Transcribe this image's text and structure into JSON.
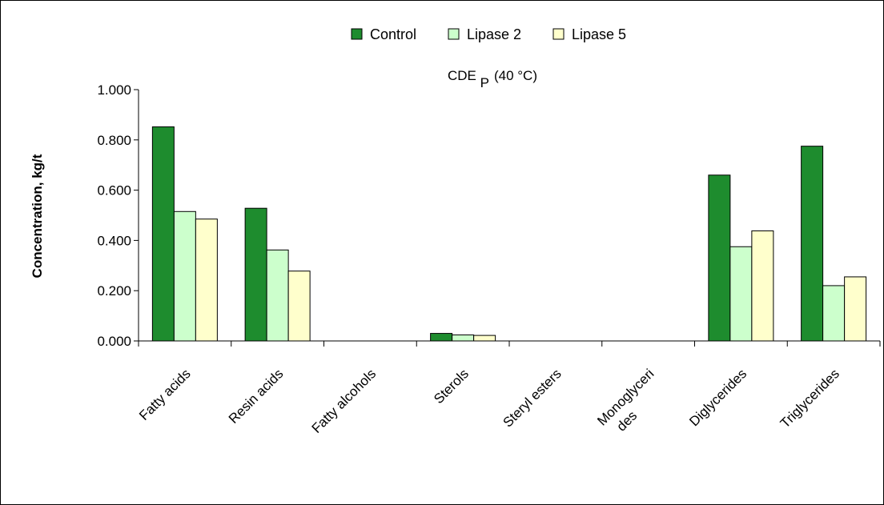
{
  "chart_data": {
    "type": "bar",
    "title": "",
    "subtitle": "CDE",
    "subtitle_sub": "P",
    "subtitle_suffix": "(40 °C)",
    "xlabel": "",
    "ylabel": "Concentration, kg/t",
    "ylim": [
      0,
      1.0
    ],
    "yticks": [
      "0.000",
      "0.200",
      "0.400",
      "0.600",
      "0.800",
      "1.000"
    ],
    "ytick_values": [
      0,
      0.2,
      0.4,
      0.6,
      0.8,
      1.0
    ],
    "grid": false,
    "legend_position": "top",
    "categories": [
      "Fatty acids",
      "Resin acids",
      "Fatty alcohols",
      "Sterols",
      "Steryl esters",
      "Monoglyceri des",
      "Diglycerides",
      "Triglycerides"
    ],
    "series": [
      {
        "name": "Control",
        "color": "#1e8c2e",
        "values": [
          0.852,
          0.528,
          0,
          0.03,
          0,
          0,
          0.66,
          0.775
        ]
      },
      {
        "name": "Lipase 2",
        "color": "#ccffcc",
        "values": [
          0.515,
          0.362,
          0,
          0.024,
          0,
          0,
          0.375,
          0.22
        ]
      },
      {
        "name": "Lipase 5",
        "color": "#ffffcc",
        "values": [
          0.485,
          0.278,
          0,
          0.022,
          0,
          0,
          0.438,
          0.255
        ]
      }
    ]
  }
}
